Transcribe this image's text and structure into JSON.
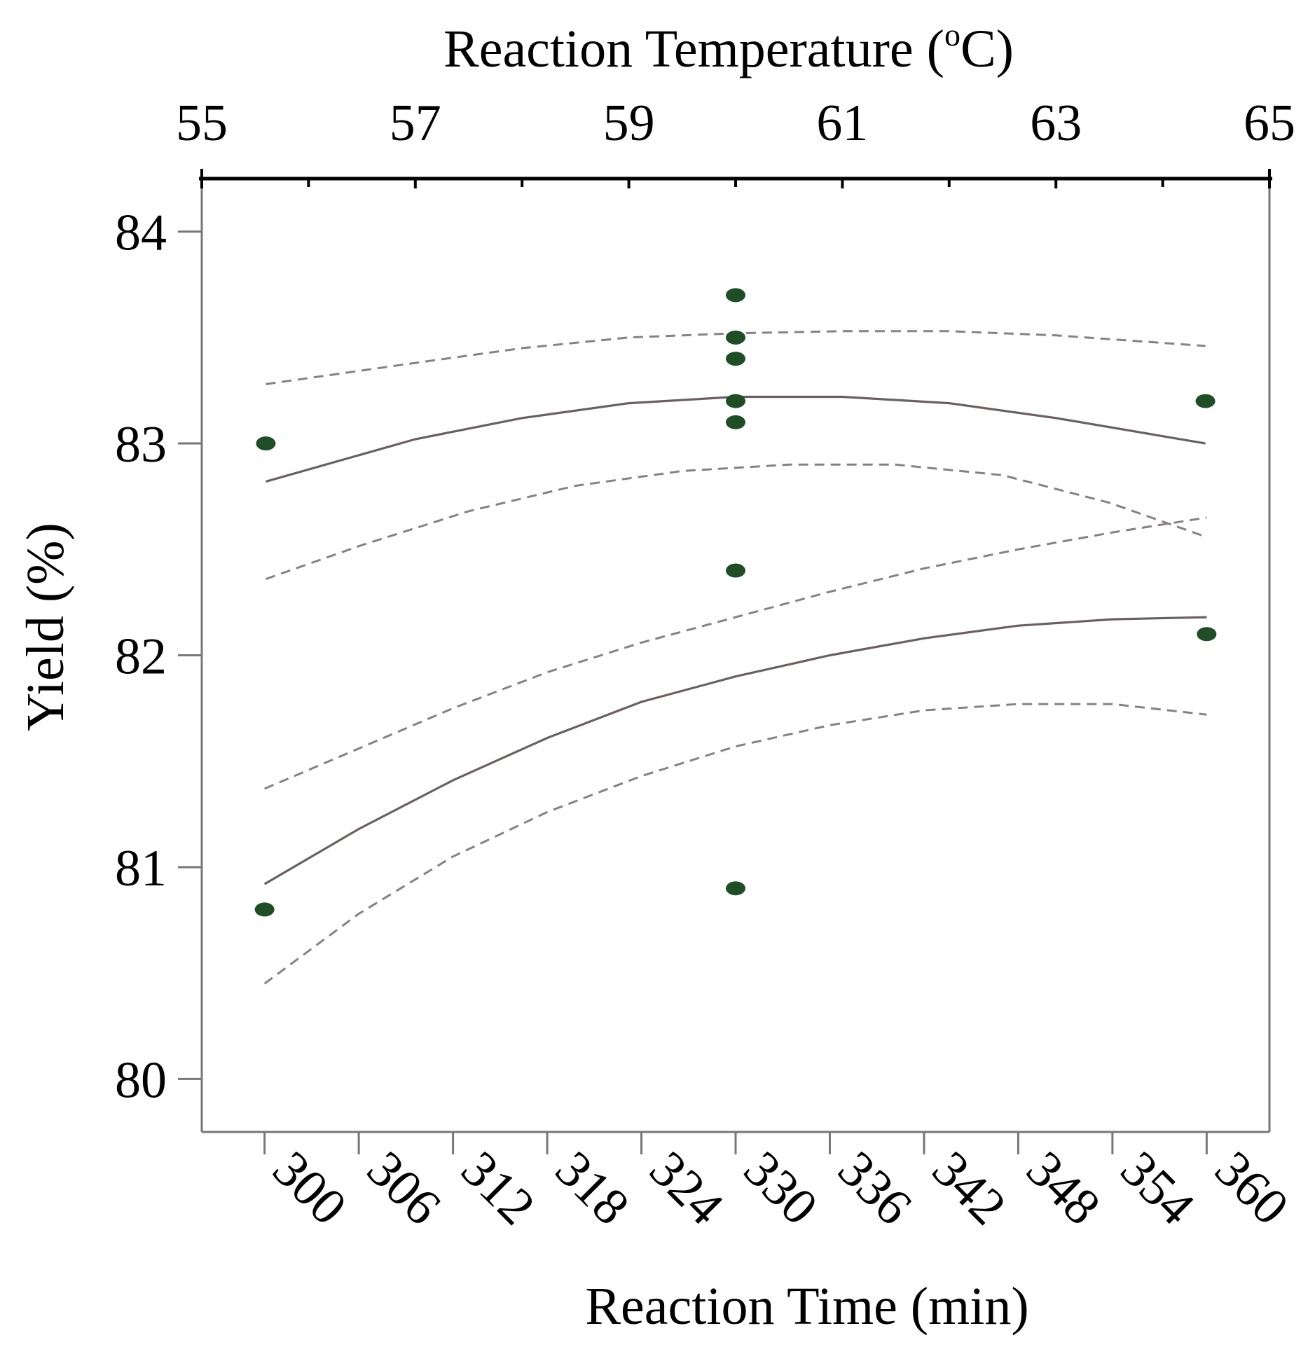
{
  "chart_data": {
    "type": "scatter",
    "ylabel": "Yield (%)",
    "y_ticks": [
      "80",
      "81",
      "82",
      "83",
      "84"
    ],
    "ylim": [
      79.75,
      84.25
    ],
    "top_axis": {
      "title": "Reaction Temperature (",
      "title_sup": "o",
      "title_end": "C)",
      "ticks": [
        "55",
        "57",
        "59",
        "61",
        "63",
        "65"
      ],
      "range": [
        55,
        65
      ]
    },
    "bottom_axis": {
      "title": "Reaction Time (min)",
      "ticks": [
        "300",
        "306",
        "312",
        "318",
        "324",
        "330",
        "336",
        "342",
        "348",
        "354",
        "360"
      ],
      "range": [
        296,
        364
      ]
    },
    "series": [
      {
        "name": "Reaction Temperature",
        "axis": "top",
        "points": [
          {
            "x": 55.6,
            "y": 83.0
          },
          {
            "x": 60.0,
            "y": 83.7
          },
          {
            "x": 60.0,
            "y": 83.5
          },
          {
            "x": 60.0,
            "y": 83.4
          },
          {
            "x": 60.0,
            "y": 83.2
          },
          {
            "x": 60.0,
            "y": 83.1
          },
          {
            "x": 60.0,
            "y": 82.4
          },
          {
            "x": 64.4,
            "y": 83.2
          }
        ],
        "fit": {
          "x": [
            55.6,
            57,
            58,
            59,
            60,
            61,
            62,
            63,
            64.4
          ],
          "y": [
            82.82,
            83.02,
            83.12,
            83.19,
            83.22,
            83.22,
            83.19,
            83.12,
            83.0
          ]
        },
        "upper_ci": {
          "x": [
            55.6,
            57,
            58,
            59,
            60,
            61,
            62,
            63,
            64.4
          ],
          "y": [
            83.28,
            83.38,
            83.45,
            83.5,
            83.52,
            83.53,
            83.53,
            83.51,
            83.46
          ]
        },
        "lower_ci": {
          "x": [
            55.6,
            56.5,
            57.5,
            58.5,
            59.5,
            60.5,
            61.5,
            62.5,
            63.5,
            64.4
          ],
          "y": [
            82.36,
            82.52,
            82.68,
            82.8,
            82.87,
            82.9,
            82.9,
            82.85,
            82.72,
            82.56
          ]
        }
      },
      {
        "name": "Reaction Time",
        "axis": "bottom",
        "points": [
          {
            "x": 300,
            "y": 80.8
          },
          {
            "x": 330,
            "y": 80.9
          },
          {
            "x": 360,
            "y": 82.1
          }
        ],
        "fit": {
          "x": [
            300,
            306,
            312,
            318,
            324,
            330,
            336,
            342,
            348,
            354,
            360
          ],
          "y": [
            80.92,
            81.18,
            81.41,
            81.61,
            81.78,
            81.9,
            82.0,
            82.08,
            82.14,
            82.17,
            82.18
          ]
        },
        "upper_ci": {
          "x": [
            300,
            306,
            312,
            318,
            324,
            330,
            336,
            342,
            348,
            354,
            360
          ],
          "y": [
            81.37,
            81.56,
            81.75,
            81.92,
            82.06,
            82.18,
            82.3,
            82.41,
            82.5,
            82.58,
            82.65
          ]
        },
        "lower_ci": {
          "x": [
            300,
            306,
            312,
            318,
            324,
            330,
            336,
            342,
            348,
            354,
            360
          ],
          "y": [
            80.45,
            80.78,
            81.05,
            81.26,
            81.43,
            81.57,
            81.67,
            81.74,
            81.77,
            81.77,
            81.72
          ]
        }
      }
    ]
  }
}
